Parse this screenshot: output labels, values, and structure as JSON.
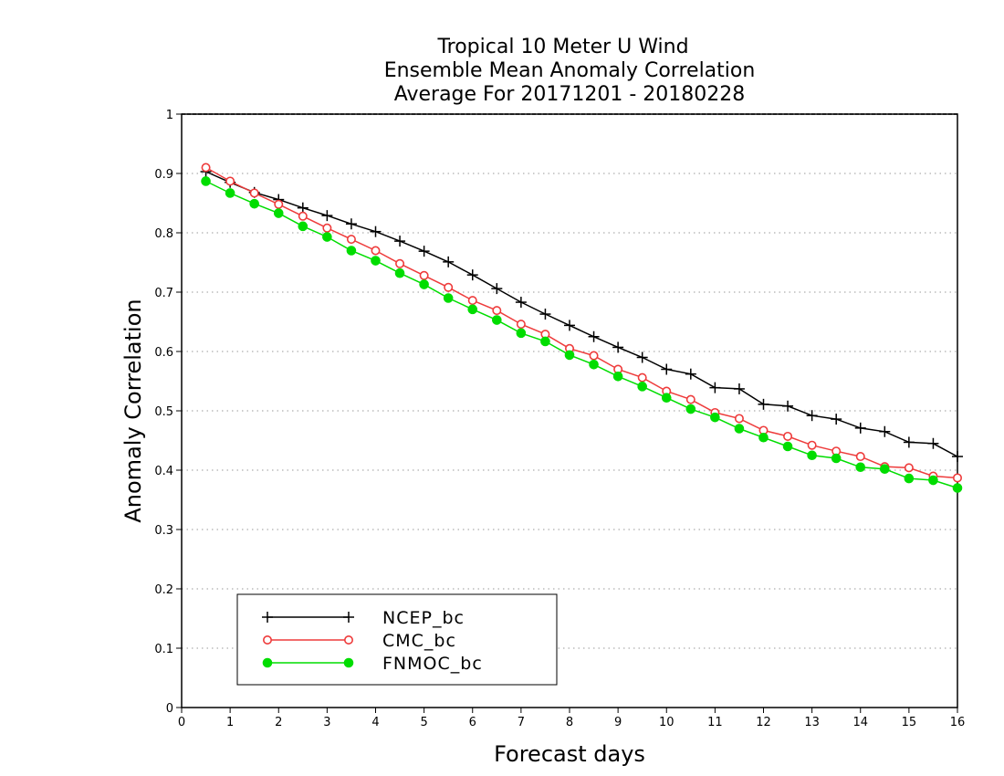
{
  "chart_data": {
    "type": "line",
    "title": [
      "Tropical 10 Meter U Wind",
      "Ensemble Mean Anomaly Correlation",
      "Average For 20171201 - 20180228"
    ],
    "xlabel": "Forecast days",
    "ylabel": "Anomaly Correlation",
    "xlim": [
      0,
      16
    ],
    "ylim": [
      0,
      1
    ],
    "xticks": [
      0,
      1,
      2,
      3,
      4,
      5,
      6,
      7,
      8,
      9,
      10,
      11,
      12,
      13,
      14,
      15,
      16
    ],
    "xtick_labels": [
      "0",
      "1",
      "2",
      "3",
      "4",
      "5",
      "6",
      "7",
      "8",
      "9",
      "10",
      "11",
      "12",
      "13",
      "14",
      "15",
      "16"
    ],
    "yticks": [
      0,
      0.1,
      0.2,
      0.3,
      0.4,
      0.5,
      0.6,
      0.7,
      0.8,
      0.9,
      1
    ],
    "ytick_labels": [
      "0",
      "0.1",
      "0.2",
      "0.3",
      "0.4",
      "0.5",
      "0.6",
      "0.7",
      "0.8",
      "0.9",
      "1"
    ],
    "grid": "horizontal dotted",
    "legend_position": "bottom-left",
    "x": [
      0.5,
      1,
      1.5,
      2,
      2.5,
      3,
      3.5,
      4,
      4.5,
      5,
      5.5,
      6,
      6.5,
      7,
      7.5,
      8,
      8.5,
      9,
      9.5,
      10,
      10.5,
      11,
      11.5,
      12,
      12.5,
      13,
      13.5,
      14,
      14.5,
      15,
      15.5,
      16
    ],
    "series": [
      {
        "name": "NCEP_bc",
        "color": "#000000",
        "marker": "plus",
        "values": [
          0.903,
          0.885,
          0.868,
          0.856,
          0.842,
          0.829,
          0.815,
          0.802,
          0.786,
          0.769,
          0.751,
          0.729,
          0.706,
          0.683,
          0.663,
          0.644,
          0.625,
          0.607,
          0.59,
          0.57,
          0.562,
          0.539,
          0.537,
          0.511,
          0.508,
          0.492,
          0.486,
          0.471,
          0.465,
          0.447,
          0.445,
          0.423
        ]
      },
      {
        "name": "CMC_bc",
        "color": "#ee3b3b",
        "marker": "open-circle",
        "values": [
          0.91,
          0.887,
          0.867,
          0.848,
          0.828,
          0.808,
          0.789,
          0.77,
          0.748,
          0.728,
          0.708,
          0.686,
          0.669,
          0.646,
          0.629,
          0.605,
          0.593,
          0.57,
          0.556,
          0.533,
          0.519,
          0.497,
          0.487,
          0.467,
          0.457,
          0.442,
          0.432,
          0.423,
          0.406,
          0.404,
          0.39,
          0.387
        ]
      },
      {
        "name": "FNMOC_bc",
        "color": "#00dd00",
        "marker": "filled-circle",
        "values": [
          0.887,
          0.867,
          0.849,
          0.833,
          0.811,
          0.793,
          0.77,
          0.753,
          0.732,
          0.713,
          0.69,
          0.671,
          0.653,
          0.631,
          0.617,
          0.594,
          0.578,
          0.558,
          0.541,
          0.522,
          0.503,
          0.489,
          0.47,
          0.455,
          0.44,
          0.425,
          0.42,
          0.405,
          0.402,
          0.386,
          0.383,
          0.37
        ]
      }
    ]
  }
}
